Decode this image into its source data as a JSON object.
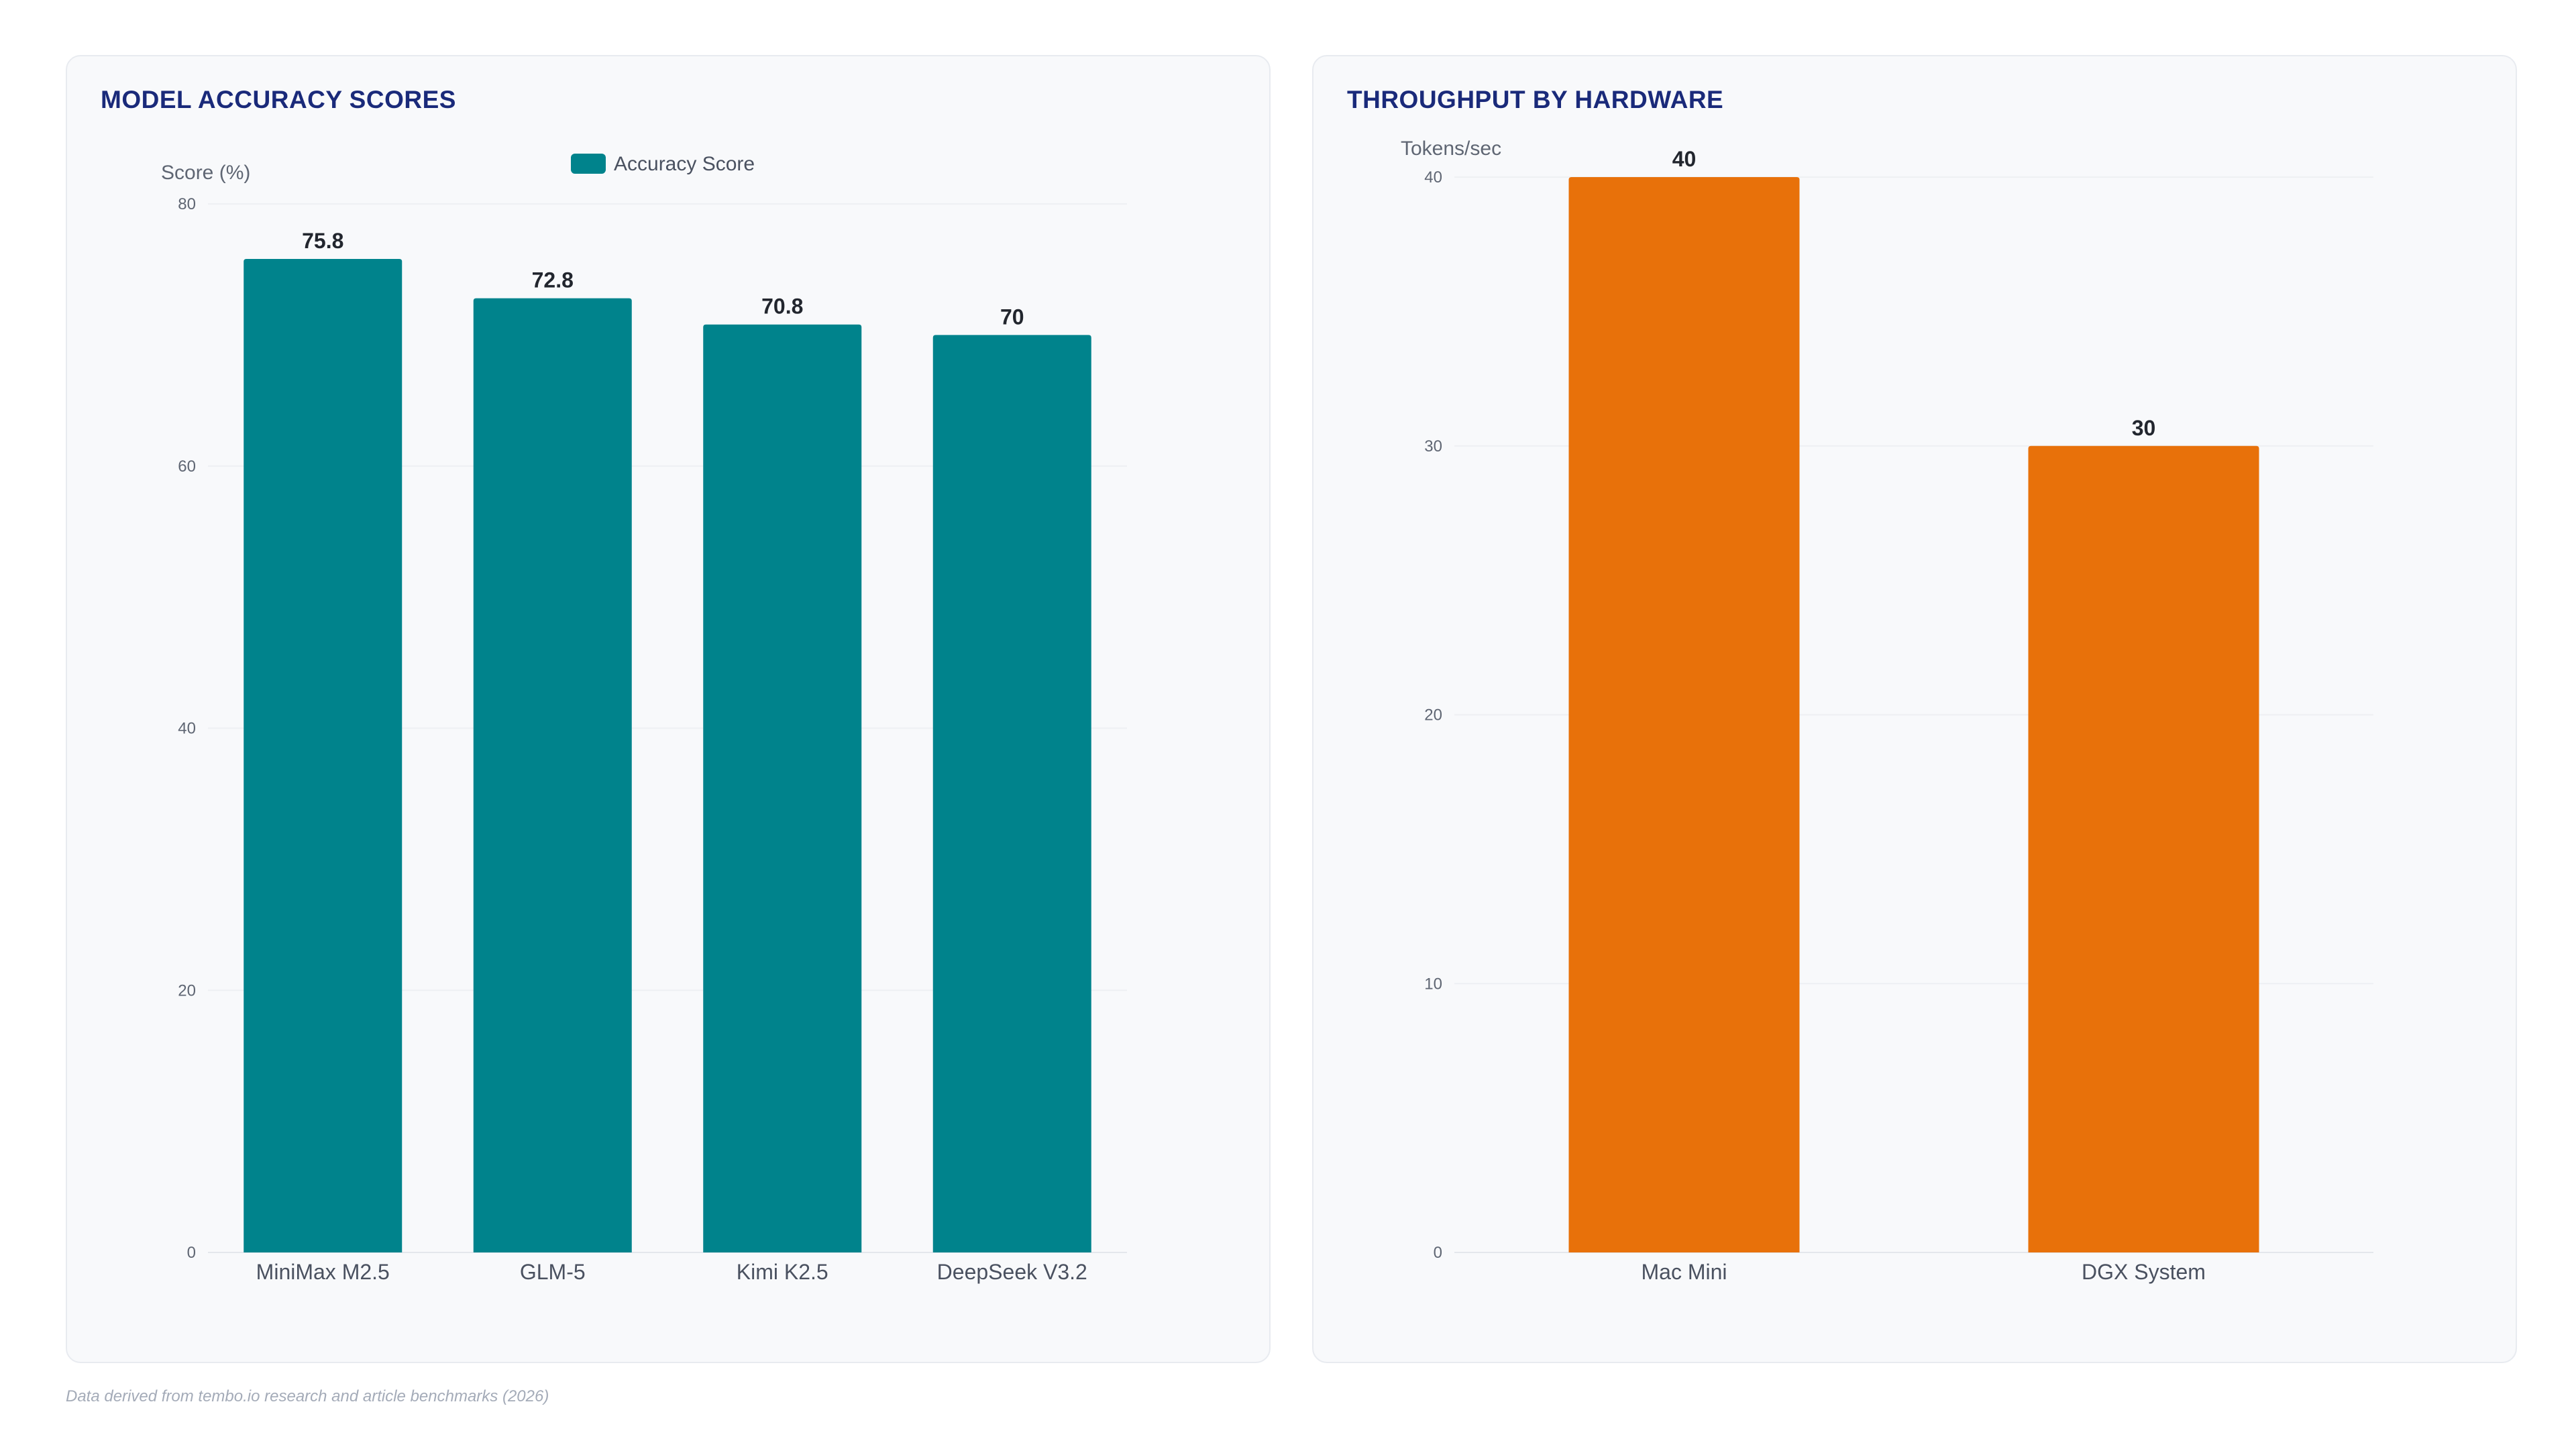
{
  "charts": [
    {
      "title": "MODEL ACCURACY SCORES",
      "color": "#00838c",
      "chart_data": {
        "type": "bar",
        "title": "MODEL ACCURACY SCORES",
        "categories": [
          "MiniMax M2.5",
          "GLM-5",
          "Kimi K2.5",
          "DeepSeek V3.2"
        ],
        "series": [
          {
            "name": "Accuracy Score",
            "values": [
              75.8,
              72.8,
              70.8,
              70
            ]
          }
        ],
        "ylabel": "Score (%)",
        "xlabel": "",
        "ylim": [
          0,
          80
        ],
        "yticks": [
          0,
          20,
          40,
          60,
          80
        ],
        "grid": true,
        "legend": "top-center",
        "data_labels": true
      }
    },
    {
      "title": "THROUGHPUT BY HARDWARE",
      "color": "#e8710a",
      "chart_data": {
        "type": "bar",
        "title": "THROUGHPUT BY HARDWARE",
        "categories": [
          "Mac Mini",
          "DGX System"
        ],
        "series": [
          {
            "values": [
              40,
              30
            ]
          }
        ],
        "ylabel": "Tokens/sec",
        "xlabel": "",
        "ylim": [
          0,
          40
        ],
        "yticks": [
          0,
          10,
          20,
          30,
          40
        ],
        "grid": true,
        "legend": "none",
        "data_labels": true
      }
    }
  ],
  "footnote": "Data derived from tembo.io research and article benchmarks (2026)"
}
